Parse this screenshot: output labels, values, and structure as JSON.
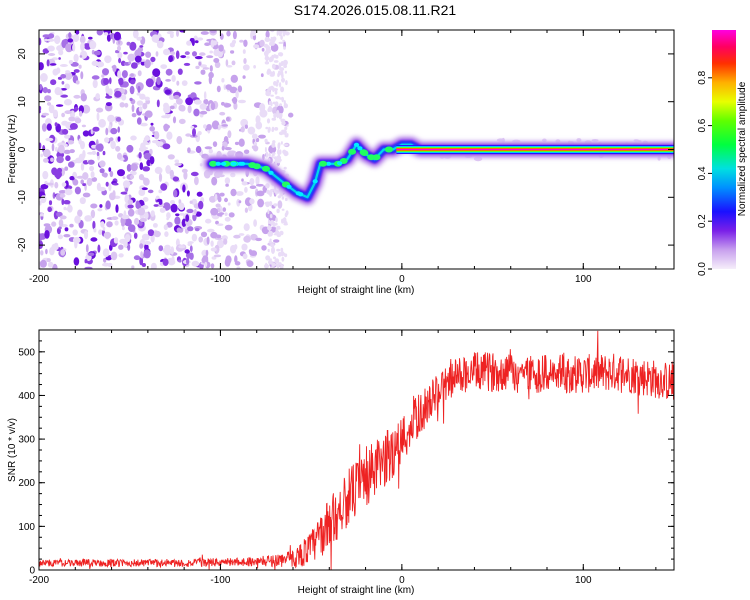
{
  "title": "S174.2026.015.08.11.R21",
  "chart_data": [
    {
      "type": "heatmap",
      "xlabel": "Height of straight line (km)",
      "ylabel": "Frequency (Hz)",
      "xlim": [
        -200,
        150
      ],
      "ylim": [
        -25,
        25
      ],
      "x_ticks": [
        -200,
        -100,
        0,
        100
      ],
      "y_ticks": [
        -20,
        -10,
        0,
        10,
        20
      ],
      "colorbar": {
        "label": "Normalized spectral amplitude",
        "range": [
          0,
          1
        ],
        "ticks": [
          0.0,
          0.2,
          0.4,
          0.6,
          0.8
        ],
        "tick_labels": [
          "0.0",
          "0.2",
          "0.4",
          "0.6",
          "0.8"
        ]
      },
      "ridge_frequency": {
        "x": [
          -105,
          -95,
          -85,
          -75,
          -65,
          -58,
          -52,
          -48,
          -45,
          -40,
          -35,
          -30,
          -25,
          -20,
          -15,
          -10,
          -5,
          0,
          5,
          10,
          15,
          20,
          50,
          100,
          150
        ],
        "y": [
          -3,
          -3,
          -3,
          -4,
          -7,
          -9,
          -10,
          -7,
          -3,
          -3,
          -3,
          -2,
          1,
          -1,
          -2,
          0,
          0,
          1,
          1,
          0,
          0,
          0,
          0,
          0,
          0
        ]
      },
      "noise_region_x": [
        -200,
        -65
      ]
    },
    {
      "type": "line",
      "xlabel": "Height of straight line (km)",
      "ylabel": "SNR (10 * v/v)",
      "xlim": [
        -200,
        150
      ],
      "ylim": [
        0,
        550
      ],
      "x_ticks": [
        -200,
        -100,
        0,
        100
      ],
      "y_ticks": [
        0,
        100,
        200,
        300,
        400,
        500
      ],
      "color": "#ee2222",
      "envelope": {
        "x": [
          -200,
          -120,
          -80,
          -60,
          -50,
          -40,
          -30,
          -20,
          -10,
          0,
          10,
          20,
          30,
          40,
          60,
          80,
          100,
          120,
          150
        ],
        "y": [
          18,
          18,
          22,
          30,
          60,
          120,
          180,
          225,
          265,
          310,
          370,
          420,
          455,
          465,
          465,
          460,
          460,
          465,
          440
        ]
      },
      "noise_amplitude": {
        "x": [
          -200,
          -80,
          -60,
          -40,
          -20,
          0,
          20,
          40,
          150
        ],
        "y": [
          8,
          10,
          20,
          60,
          70,
          60,
          40,
          45,
          45
        ]
      }
    }
  ]
}
